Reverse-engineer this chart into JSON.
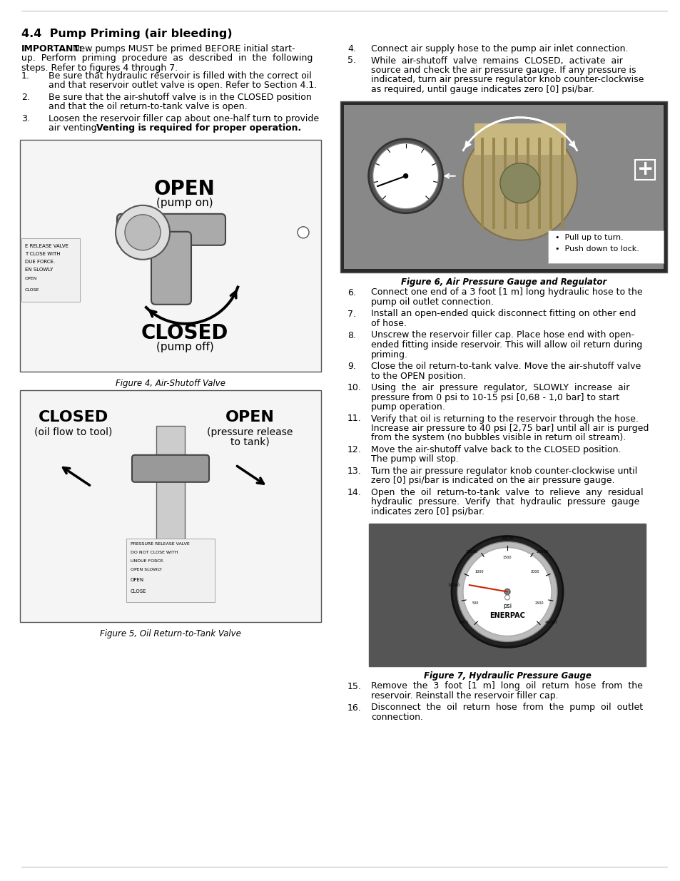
{
  "bg_color": "#ffffff",
  "section_title": "4.4  Pump Priming (air bleeding)",
  "important_bold": "IMPORTANT:",
  "important_lines": [
    "IMPORTANT: New pumps MUST be primed BEFORE initial start-",
    "up.  Perform  priming  procedure  as  described  in  the  following",
    "steps. Refer to figures 4 through 7."
  ],
  "left_items": [
    {
      "num": "1.",
      "lines": [
        "Be sure that hydraulic reservoir is filled with the correct oil",
        "and that reservoir outlet valve is open. Refer to Section 4.1."
      ]
    },
    {
      "num": "2.",
      "lines": [
        "Be sure that the air-shutoff valve is in the CLOSED position",
        "and that the oil return-to-tank valve is open."
      ]
    },
    {
      "num": "3.",
      "lines": [
        "Loosen the reservoir filler cap about one-half turn to provide",
        "air venting. Venting is required for proper operation."
      ],
      "bold_start_line1": "Venting is required for proper operation."
    }
  ],
  "right_items_1": [
    {
      "num": "4.",
      "lines": [
        "Connect air supply hose to the pump air inlet connection."
      ]
    },
    {
      "num": "5.",
      "lines": [
        "While  air-shutoff  valve  remains  CLOSED,  activate  air",
        "source and check the air pressure gauge. If any pressure is",
        "indicated, turn air pressure regulator knob counter-clockwise",
        "as required, until gauge indicates zero [0] psi/bar."
      ]
    }
  ],
  "right_items_2": [
    {
      "num": "6.",
      "lines": [
        "Connect one end of a 3 foot [1 m] long hydraulic hose to the",
        "pump oil outlet connection."
      ]
    },
    {
      "num": "7.",
      "lines": [
        "Install an open-ended quick disconnect fitting on other end",
        "of hose."
      ]
    },
    {
      "num": "8.",
      "lines": [
        "Unscrew the reservoir filler cap. Place hose end with open-",
        "ended fitting inside reservoir. This will allow oil return during",
        "priming."
      ]
    },
    {
      "num": "9.",
      "lines": [
        "Close the oil return-to-tank valve. Move the air-shutoff valve",
        "to the OPEN position."
      ]
    },
    {
      "num": "10.",
      "lines": [
        "Using  the  air  pressure  regulator,  SLOWLY  increase  air",
        "pressure from 0 psi to 10-15 psi [0,68 - 1,0 bar] to start",
        "pump operation."
      ]
    },
    {
      "num": "11.",
      "lines": [
        "Verify that oil is returning to the reservoir through the hose.",
        "Increase air pressure to 40 psi [2,75 bar] until all air is purged",
        "from the system (no bubbles visible in return oil stream)."
      ]
    },
    {
      "num": "12.",
      "lines": [
        "Move the air-shutoff valve back to the CLOSED position.",
        "The pump will stop."
      ]
    },
    {
      "num": "13.",
      "lines": [
        "Turn the air pressure regulator knob counter-clockwise until",
        "zero [0] psi/bar is indicated on the air pressure gauge."
      ]
    },
    {
      "num": "14.",
      "lines": [
        "Open  the  oil  return-to-tank  valve  to  relieve  any  residual",
        "hydraulic  pressure.  Verify  that  hydraulic  pressure  gauge",
        "indicates zero [0] psi/bar."
      ]
    }
  ],
  "right_items_3": [
    {
      "num": "15.",
      "lines": [
        "Remove  the  3  foot  [1  m]  long  oil  return  hose  from  the",
        "reservoir. Reinstall the reservoir filler cap."
      ]
    },
    {
      "num": "16.",
      "lines": [
        "Disconnect  the  oil  return  hose  from  the  pump  oil  outlet",
        "connection."
      ]
    }
  ],
  "fig4_caption": "Figure 4, Air-Shutoff Valve",
  "fig5_caption": "Figure 5, Oil Return-to-Tank Valve",
  "fig6_caption": "Figure 6, Air Pressure Gauge and Regulator",
  "fig7_caption": "Figure 7, Hydraulic Pressure Gauge",
  "fig6_bullet1": "Pull up to turn.",
  "fig6_bullet2": "Push down to lock.",
  "fig4_open": "OPEN",
  "fig4_open_sub": "(pump on)",
  "fig4_closed": "CLOSED",
  "fig4_closed_sub": "(pump off)",
  "fig5_closed": "CLOSED",
  "fig5_closed_sub": "(oil flow to tool)",
  "fig5_open": "OPEN",
  "fig5_open_sub1": "(pressure release",
  "fig5_open_sub2": "to tank)"
}
